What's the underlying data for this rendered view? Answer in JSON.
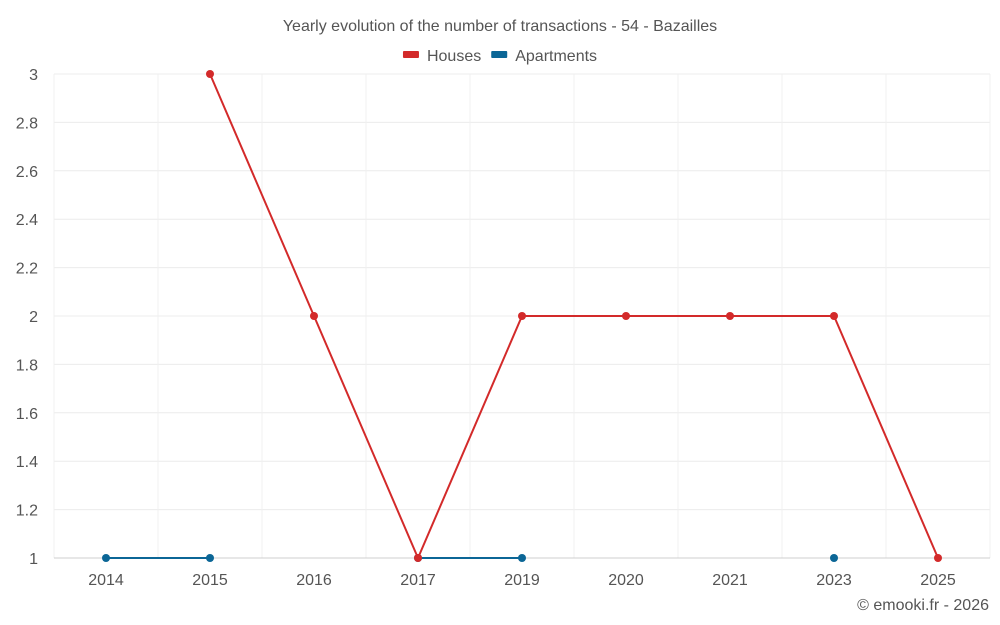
{
  "chart_data": {
    "type": "line",
    "title": "Yearly evolution of the number of transactions - 54 - Bazailles",
    "xlabel": "",
    "ylabel": "",
    "categories": [
      "2014",
      "2015",
      "2016",
      "2017",
      "2019",
      "2020",
      "2021",
      "2023",
      "2025"
    ],
    "ylim": [
      1,
      3
    ],
    "yticks": [
      "1",
      "1.2",
      "1.4",
      "1.6",
      "1.8",
      "2",
      "2.2",
      "2.4",
      "2.6",
      "2.8",
      "3"
    ],
    "grid": true,
    "legend_position": "top-center",
    "series": [
      {
        "name": "Houses",
        "color": "#d32a2a",
        "values": [
          null,
          3,
          2,
          1,
          2,
          2,
          2,
          2,
          1
        ]
      },
      {
        "name": "Apartments",
        "color": "#0b6696",
        "values": [
          1,
          1,
          null,
          1,
          1,
          null,
          null,
          1,
          null
        ]
      }
    ]
  },
  "credit": "© emooki.fr - 2026"
}
